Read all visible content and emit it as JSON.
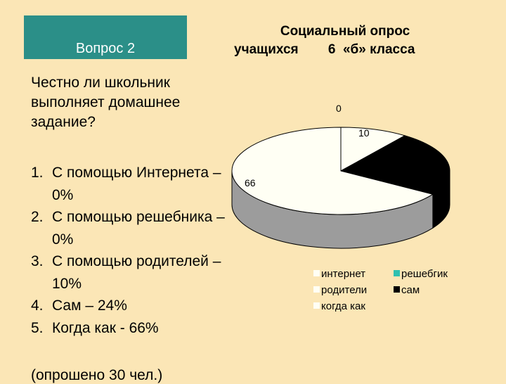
{
  "question_box": {
    "label": "Вопрос 2"
  },
  "question": {
    "text": "Честно ли школьник выполняет домашнее задание?"
  },
  "answers": [
    {
      "num": "1.",
      "text": "С помощью Интернета – 0%"
    },
    {
      "num": "2.",
      "text": "С помощью решебника – 0%"
    },
    {
      "num": "3.",
      "text": "С помощью родителей – 10%"
    },
    {
      "num": "4.",
      "text": "Сам – 24%"
    },
    {
      "num": "5.",
      "text": "Когда как - 66%"
    }
  ],
  "footer": {
    "text": "(опрошено 30 чел.)"
  },
  "colors": {
    "background": "#fbe6b6",
    "question_box": "#2b8f88"
  },
  "chart_data": {
    "type": "pie",
    "title_line1": "Социальный опрос",
    "title_line2": "учащихся        6  «б» класса",
    "style": "3d",
    "legend_position": "bottom-right",
    "data_labels": [
      "0",
      "10",
      "66"
    ],
    "slices": [
      {
        "name": "интернет",
        "value": 0,
        "color": "#fffff4",
        "side": "#9c9c9c"
      },
      {
        "name": "решебгик",
        "value": 0,
        "color": "#2fc0b0",
        "side": "#1c7e74"
      },
      {
        "name": "родители",
        "value": 10,
        "color": "#fffff4",
        "side": "#9c9c9c"
      },
      {
        "name": "сам",
        "value": 24,
        "color": "#000000",
        "side": "#000000"
      },
      {
        "name": "когда как",
        "value": 66,
        "color": "#fffff4",
        "side": "#9c9c9c"
      }
    ],
    "legend": [
      {
        "label": "интернет",
        "color": "#fffff4"
      },
      {
        "label": "решебгик",
        "color": "#2fc0b0"
      },
      {
        "label": "родители",
        "color": "#fffff4"
      },
      {
        "label": "сам",
        "color": "#000000"
      },
      {
        "label": "когда как",
        "color": "#fffff4"
      }
    ]
  }
}
